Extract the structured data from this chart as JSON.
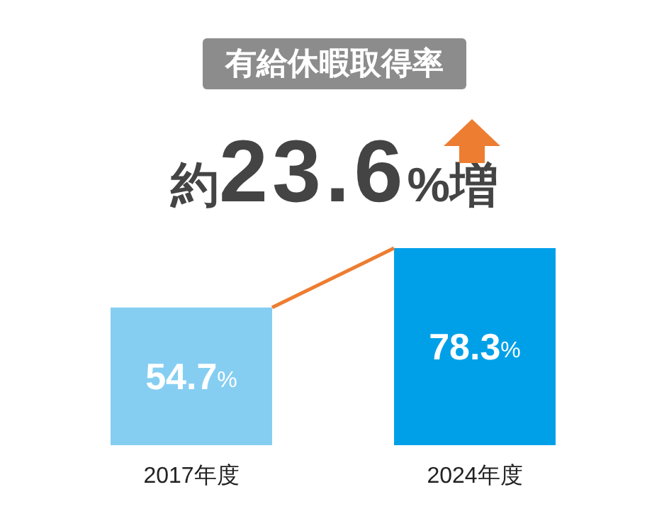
{
  "chart_data": {
    "type": "bar",
    "title": "有給休暇取得率",
    "annotations": [
      "約23.6%増"
    ],
    "categories": [
      "2017年度",
      "2024年度"
    ],
    "values": [
      54.7,
      78.3
    ],
    "colors": [
      "#85cef2",
      "#00a0e9"
    ],
    "value_labels": [
      "54.7%",
      "78.3%"
    ]
  }
}
